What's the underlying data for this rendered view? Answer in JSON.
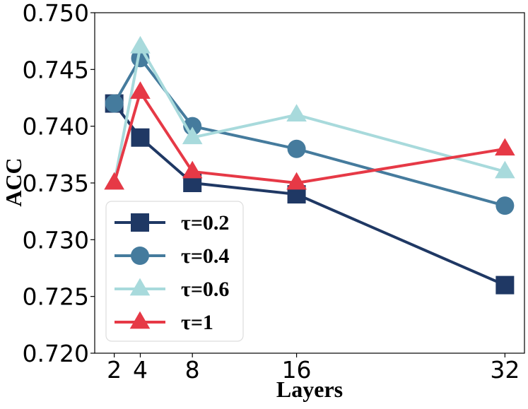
{
  "chart_data": {
    "type": "line",
    "title": "",
    "xlabel": "Layers",
    "ylabel": "ACC",
    "x": [
      2,
      4,
      8,
      16,
      32
    ],
    "x_tick_labels": [
      "2",
      "4",
      "8",
      "16",
      "32"
    ],
    "xlim": [
      0.5,
      33.5
    ],
    "ylim": [
      0.72,
      0.75
    ],
    "y_ticks": [
      0.72,
      0.725,
      0.73,
      0.735,
      0.74,
      0.745,
      0.75
    ],
    "y_tick_labels": [
      "0.720",
      "0.725",
      "0.730",
      "0.735",
      "0.740",
      "0.745",
      "0.750"
    ],
    "grid": false,
    "legend_position": "bottom-left",
    "series": [
      {
        "name": "τ=0.2",
        "marker": "square",
        "color": "#1f3864",
        "values": [
          0.742,
          0.739,
          0.735,
          0.734,
          0.726
        ]
      },
      {
        "name": "τ=0.4",
        "marker": "circle",
        "color": "#457b9d",
        "values": [
          0.742,
          0.746,
          0.74,
          0.738,
          0.733
        ]
      },
      {
        "name": "τ=0.6",
        "marker": "triangle",
        "color": "#a8dadc",
        "values": [
          0.735,
          0.747,
          0.739,
          0.741,
          0.736
        ]
      },
      {
        "name": "τ=1",
        "marker": "triangle",
        "color": "#e63946",
        "values": [
          0.735,
          0.743,
          0.736,
          0.735,
          0.738
        ]
      }
    ]
  }
}
